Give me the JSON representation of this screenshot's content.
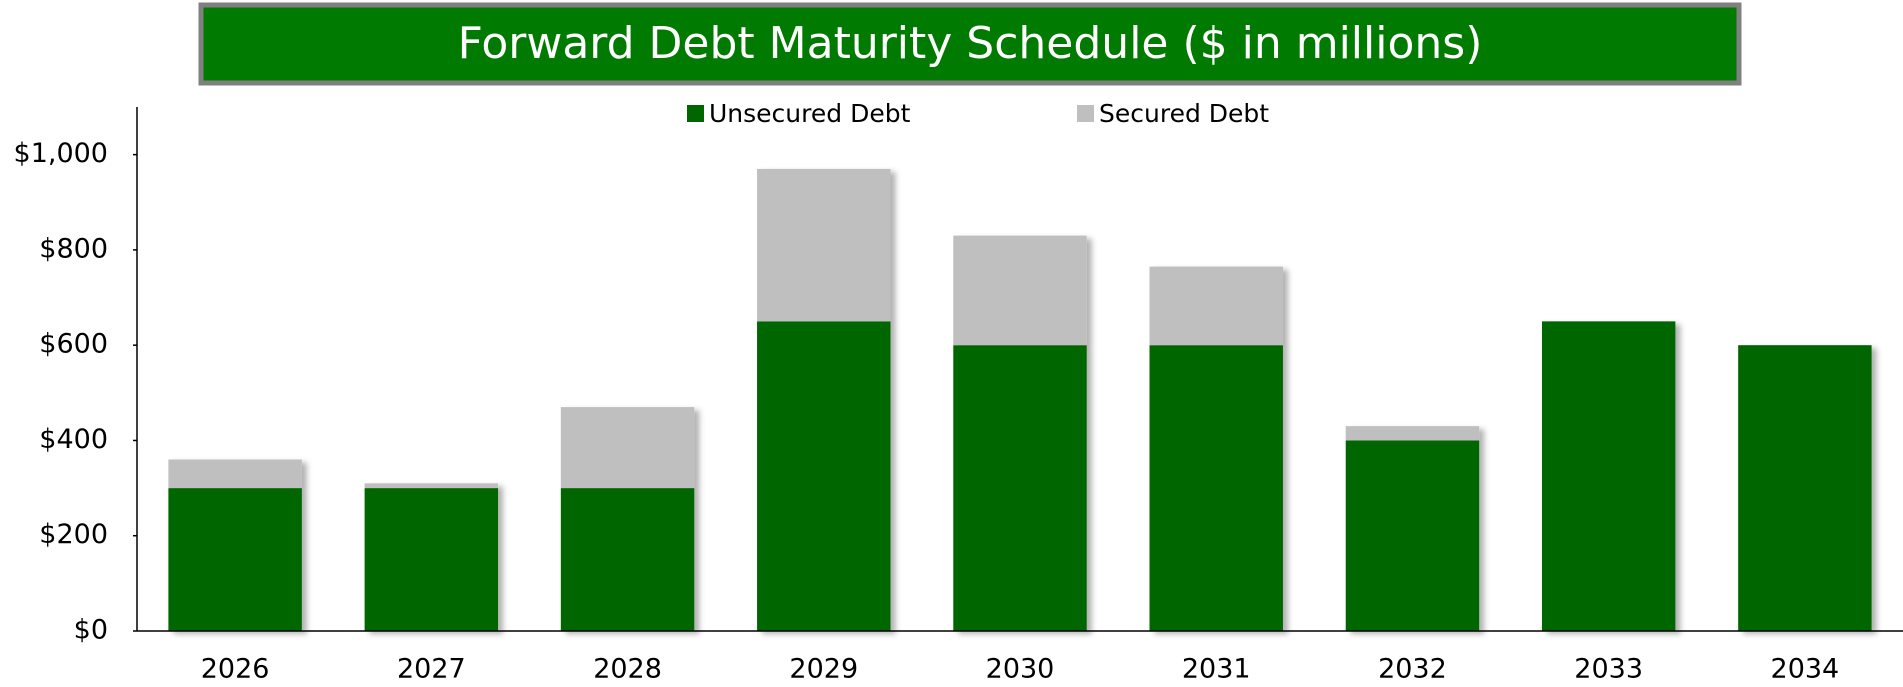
{
  "chart_data": {
    "type": "stacked_bar",
    "title": "Forward Debt Maturity Schedule ($ in millions)",
    "categories": [
      "2026",
      "2027",
      "2028",
      "2029",
      "2030",
      "2031",
      "2032",
      "2033",
      "2034"
    ],
    "series": [
      {
        "name": "Unsecured Debt",
        "color": "#006600",
        "values": [
          300,
          300,
          300,
          650,
          600,
          600,
          400,
          650,
          600
        ]
      },
      {
        "name": "Secured Debt",
        "color": "#bfbfbf",
        "values": [
          60,
          10,
          170,
          320,
          230,
          165,
          30,
          0,
          0
        ]
      }
    ],
    "ylim": [
      0,
      1100
    ],
    "yticks": [
      {
        "value": 0,
        "label": "$0"
      },
      {
        "value": 200,
        "label": "$200"
      },
      {
        "value": 400,
        "label": "$400"
      },
      {
        "value": 600,
        "label": "$600"
      },
      {
        "value": 800,
        "label": "$800"
      },
      {
        "value": 1000,
        "label": "$1,000"
      }
    ],
    "legend": "top",
    "grid": false
  }
}
